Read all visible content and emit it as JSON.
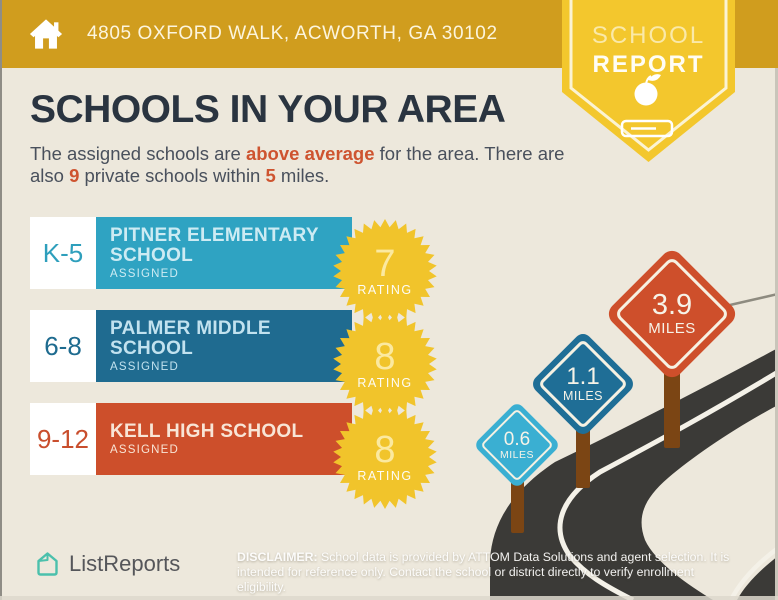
{
  "palette": {
    "header_gold": "#D09D1E",
    "badge_yellow": "#F3C72D",
    "background_cream": "#EDE8DC",
    "title_navy": "#2A3440",
    "accent_orange": "#CE5430",
    "row_teal": "#2FA3C2",
    "row_blue": "#1F6B90",
    "row_red": "#CD4F2B",
    "starburst_yellow": "#F1C42B",
    "sign_teal": "#3AAFD2",
    "sign_blue": "#1F6E96",
    "sign_red": "#CE4F2B",
    "post_brown": "#7B4514",
    "road_charcoal": "#3B3A37",
    "logo_teal": "#4BC0AC"
  },
  "header": {
    "address": "4805 OXFORD WALK, ACWORTH, GA 30102"
  },
  "badge": {
    "line1": "SCHOOL",
    "line2": "REPORT"
  },
  "main": {
    "title": "SCHOOLS IN YOUR AREA",
    "subtitle": {
      "seg1": "The assigned schools are ",
      "seg2": "above average",
      "seg3": " for the area. There are also ",
      "seg4": "9",
      "seg5": " private schools within ",
      "seg6": "5",
      "seg7": " miles."
    }
  },
  "schools": [
    {
      "grades": "K-5",
      "name": "PITNER ELEMENTARY SCHOOL",
      "status": "ASSIGNED",
      "rating": "7",
      "rating_label": "RATING"
    },
    {
      "grades": "6-8",
      "name": "PALMER MIDDLE SCHOOL",
      "status": "ASSIGNED",
      "rating": "8",
      "rating_label": "RATING"
    },
    {
      "grades": "9-12",
      "name": "KELL HIGH SCHOOL",
      "status": "ASSIGNED",
      "rating": "8",
      "rating_label": "RATING"
    }
  ],
  "signs": [
    {
      "distance": "0.6",
      "unit": "MILES"
    },
    {
      "distance": "1.1",
      "unit": "MILES"
    },
    {
      "distance": "3.9",
      "unit": "MILES"
    }
  ],
  "footer": {
    "brand": "ListReports",
    "disclaimer_bold": "DISCLAIMER:",
    "disclaimer_rest": " School data is provided by ATTOM Data Solutions and agent selection. It is intended for reference only. Contact the school or district directly to verify enrollment eligibility."
  }
}
